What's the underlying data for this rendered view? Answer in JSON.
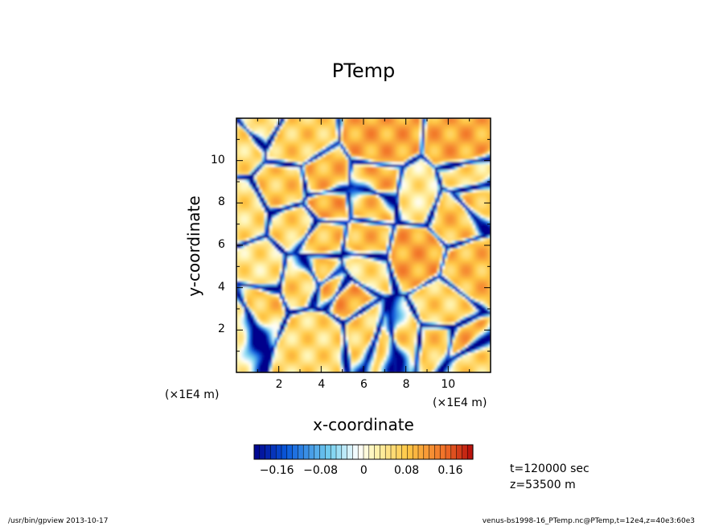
{
  "chart_data": {
    "type": "heatmap",
    "title": "PTemp",
    "xlabel": "x-coordinate",
    "ylabel": "y-coordinate",
    "xlim": [
      0,
      12
    ],
    "ylim": [
      0,
      12
    ],
    "x_ticks": [
      "2",
      "4",
      "6",
      "8",
      "10"
    ],
    "y_ticks": [
      "2",
      "4",
      "6",
      "8",
      "10"
    ],
    "x_units": "(×1E4 m)",
    "y_units": "(×1E4 m)",
    "colorbar": {
      "range": [
        -0.2,
        0.2
      ],
      "step": 0.01,
      "tick_labels": [
        "−0.16",
        "−0.08",
        "0",
        "0.08",
        "0.16"
      ],
      "colors": {
        "deep_negative": "#00008c",
        "mid_negative": "#0a5adc",
        "light_negative": "#78d2f0",
        "neutral": "#ffffff",
        "light_positive": "#fff5b4",
        "mid_positive": "#ffc846",
        "strong_positive": "#f06e28",
        "max_positive": "#b40a0a"
      }
    },
    "annotations": [
      "t=120000 sec",
      "z=53500  m"
    ]
  },
  "footer": {
    "left": "/usr/bin/gpview   2013-10-17",
    "right": "venus-bs1998-16_PTemp.nc@PTemp,t=12e4,z=40e3:60e3"
  }
}
